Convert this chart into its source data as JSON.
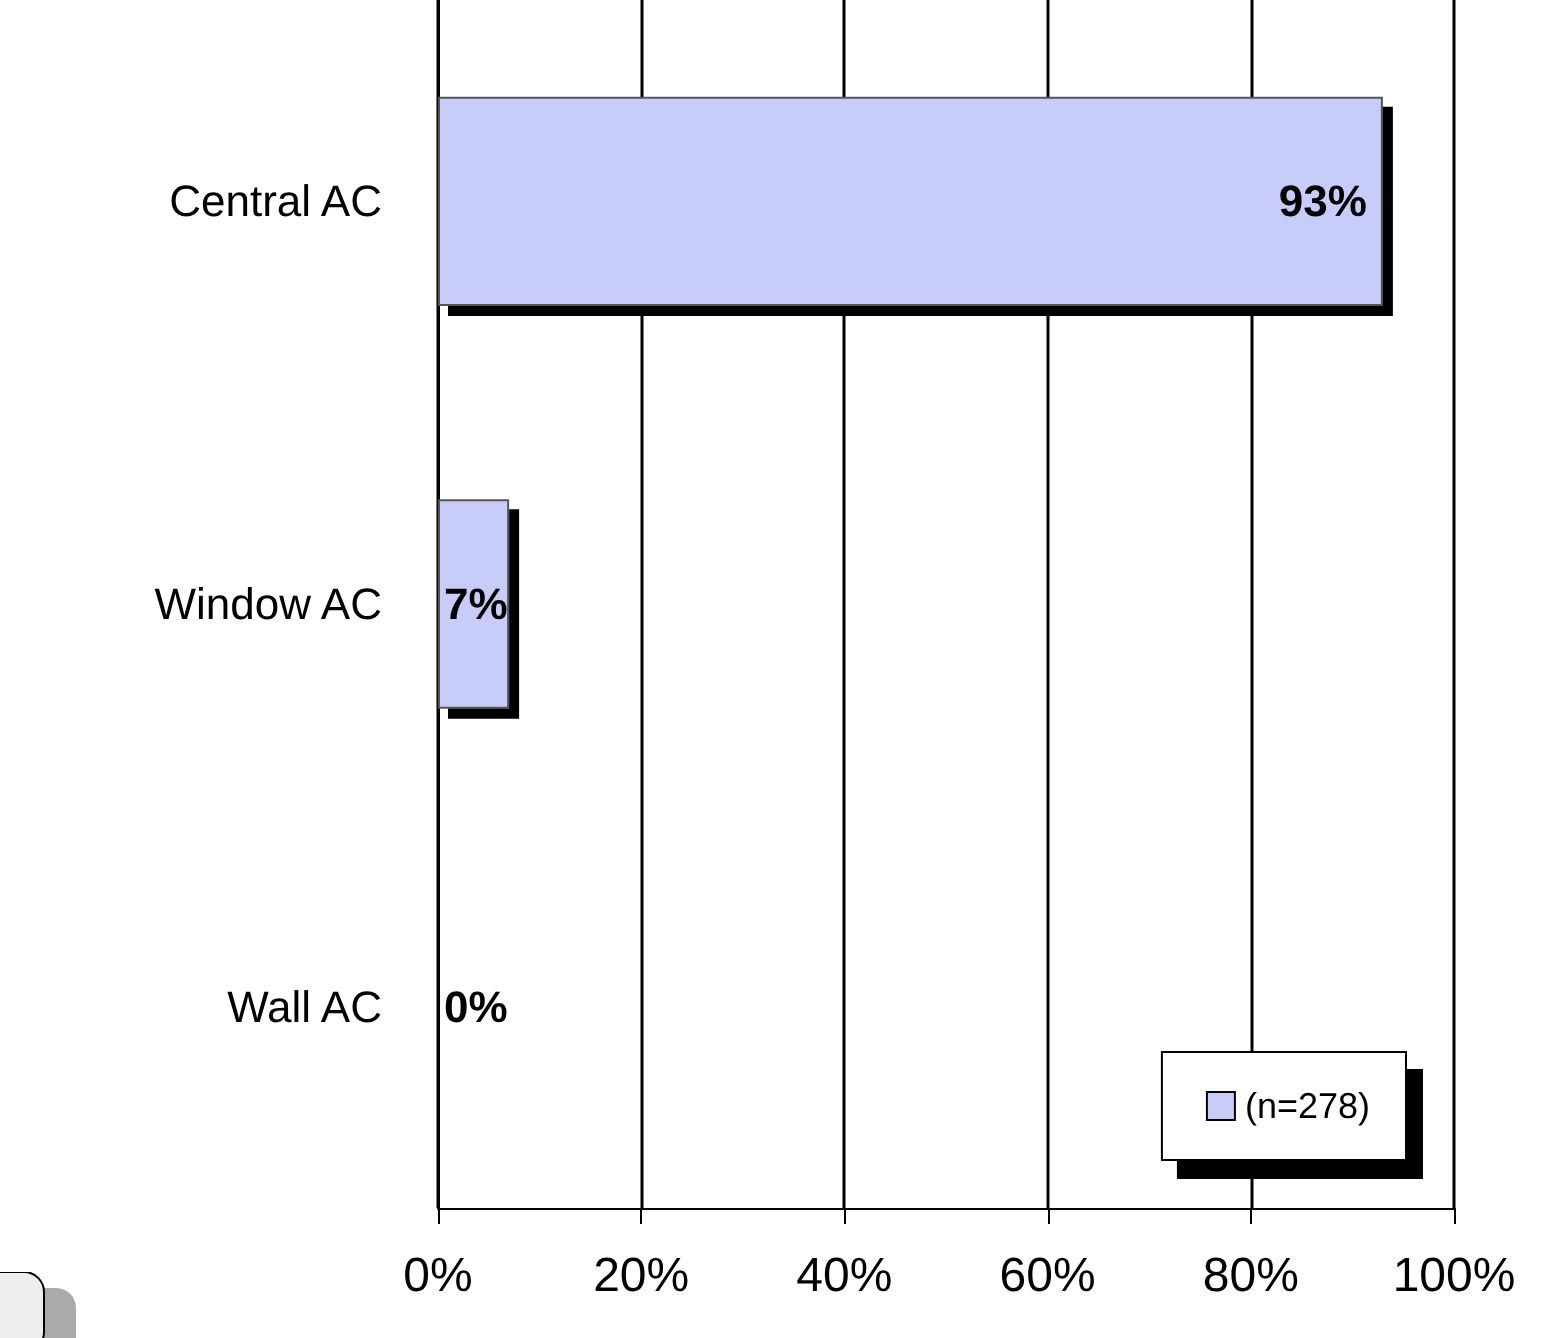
{
  "chart_data": {
    "type": "bar",
    "orientation": "horizontal",
    "categories": [
      "Central AC",
      "Window AC",
      "Wall AC"
    ],
    "series": [
      {
        "name": "(n=278)",
        "color": "#c8ccf8",
        "values": [
          93,
          7,
          0
        ],
        "value_labels": [
          "93%",
          "7%",
          "0%"
        ]
      }
    ],
    "xlim": [
      0,
      100
    ],
    "xticks": [
      {
        "value": 0,
        "label": "0%"
      },
      {
        "value": 20,
        "label": "20%"
      },
      {
        "value": 40,
        "label": "40%"
      },
      {
        "value": 60,
        "label": "60%"
      },
      {
        "value": 80,
        "label": "80%"
      },
      {
        "value": 100,
        "label": "100%"
      }
    ],
    "grid": "x",
    "legend": "bottom right"
  }
}
